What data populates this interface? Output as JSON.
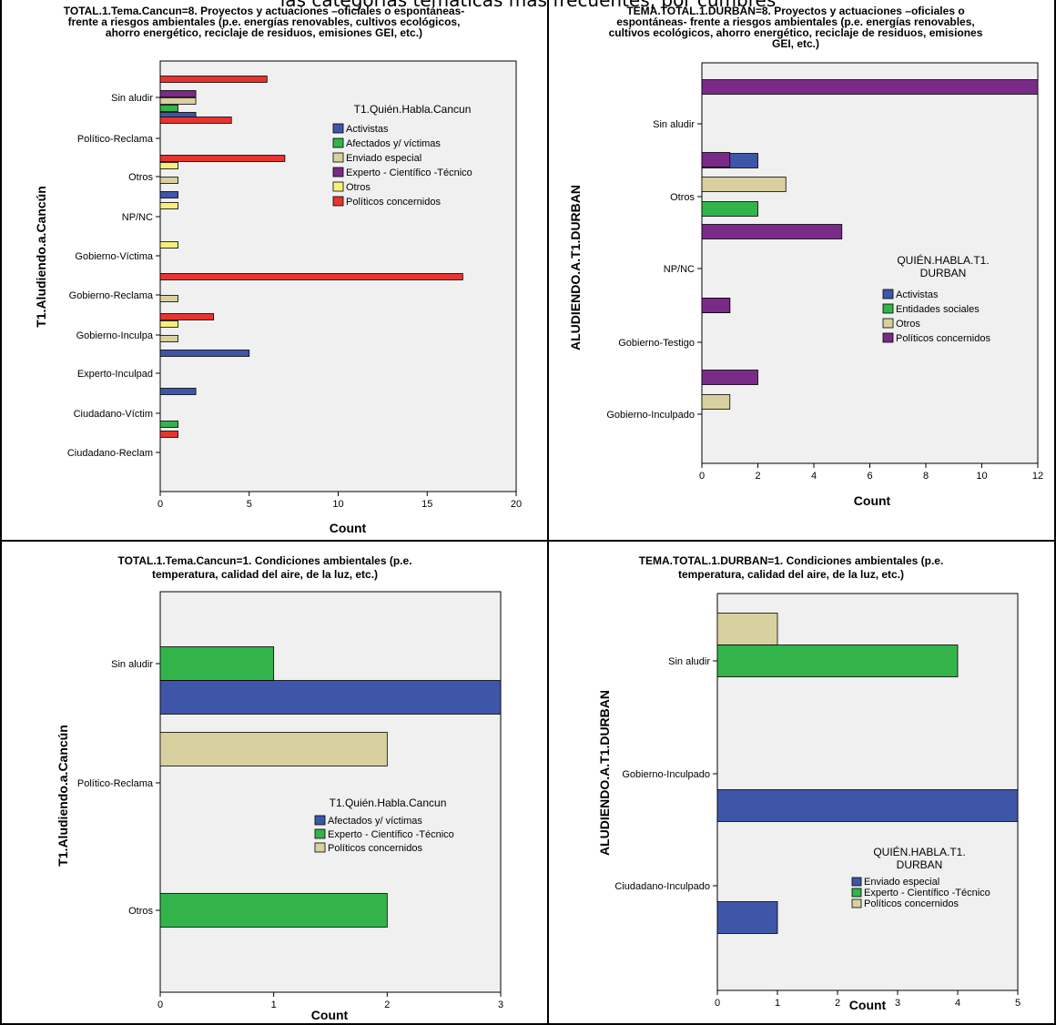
{
  "caption": "las categorías temáticas más frecuentes, por cumbres",
  "colors": {
    "blue": "#3f56a8",
    "green": "#33b44b",
    "tan": "#d9d09f",
    "purple": "#7a2b88",
    "yellow": "#f5f07a",
    "red": "#e8342f"
  },
  "chart_data": [
    {
      "type": "bar",
      "orientation": "horizontal",
      "title": [
        "TOTAL.1.Tema.Cancun=8. Proyectos y actuaciones –oficiales o espontáneas-",
        "frente a riesgos ambientales (p.e. energías renovables, cultivos ecológicos,",
        "ahorro energético, reciclaje de residuos, emisiones GEI, etc.)"
      ],
      "xlabel": "Count",
      "ylabel": "T1.Aludiendo.a.Cancún",
      "xlim": [
        0,
        20
      ],
      "xticks": [
        0,
        5,
        10,
        15,
        20
      ],
      "legend_title": [
        "T1.Quién.Habla.Cancun"
      ],
      "legend_position": "top-right",
      "categories": [
        "Sin aludir",
        "Político-Reclama",
        "Otros",
        "NP/NC",
        "Gobierno-Víctima",
        "Gobierno-Reclama",
        "Gobierno-Inculpa",
        "Experto-Inculpad",
        "Ciudadano-Víctim",
        "Ciudadano-Reclam"
      ],
      "series": [
        {
          "name": "Activistas",
          "color": "blue",
          "values": [
            2,
            0,
            1,
            0,
            0,
            0,
            5,
            2,
            0,
            0
          ]
        },
        {
          "name": "Afectados y/ víctimas",
          "color": "green",
          "values": [
            1,
            0,
            0,
            0,
            0,
            0,
            0,
            0,
            1,
            0
          ]
        },
        {
          "name": "Enviado especial",
          "color": "tan",
          "values": [
            2,
            0,
            1,
            0,
            0,
            1,
            1,
            0,
            0,
            0
          ]
        },
        {
          "name": "Experto - Científico -Técnico",
          "color": "purple",
          "values": [
            2,
            0,
            0,
            0,
            0,
            0,
            0,
            0,
            0,
            0
          ]
        },
        {
          "name": "Otros",
          "color": "yellow",
          "values": [
            0,
            0,
            1,
            1,
            1,
            0,
            1,
            0,
            0,
            0
          ]
        },
        {
          "name": "Políticos concernidos",
          "color": "red",
          "values": [
            6,
            4,
            7,
            0,
            0,
            17,
            3,
            0,
            0,
            1
          ]
        }
      ]
    },
    {
      "type": "bar",
      "orientation": "horizontal",
      "title": [
        "TEMA.TOTAL.1.DURBAN=8. Proyectos y actuaciones –oficiales o",
        "espontáneas- frente a riesgos ambientales (p.e. energías renovables,",
        "cultivos ecológicos, ahorro energético, reciclaje de residuos, emisiones",
        "GEI, etc.)"
      ],
      "xlabel": "Count",
      "ylabel": "ALUDIENDO.A.T1.DURBAN",
      "xlim": [
        0,
        12
      ],
      "xticks": [
        0,
        2,
        4,
        6,
        8,
        10,
        12
      ],
      "legend_title": [
        "QUIÉN.HABLA.T1.",
        "DURBAN"
      ],
      "legend_position": "right",
      "categories": [
        "Sin aludir",
        "Otros",
        "NP/NC",
        "Gobierno-Testigo",
        "Gobierno-Inculpado"
      ],
      "series": [
        {
          "name": "Activistas",
          "color": "blue",
          "values": [
            2,
            0,
            1,
            0,
            0
          ]
        },
        {
          "name": "Entidades sociales",
          "color": "green",
          "values": [
            0,
            2,
            0,
            0,
            0
          ]
        },
        {
          "name": "Otros",
          "color": "tan",
          "values": [
            0,
            3,
            0,
            0,
            1
          ]
        },
        {
          "name": "Políticos concernidos",
          "color": "purple",
          "values": [
            12,
            1,
            5,
            1,
            2
          ]
        }
      ]
    },
    {
      "type": "bar",
      "orientation": "horizontal",
      "title": [
        "TOTAL.1.Tema.Cancun=1. Condiciones ambientales (p.e.",
        "temperatura, calidad del aire, de la luz, etc.)"
      ],
      "xlabel": "Count",
      "ylabel": "T1.Aludiendo.a.Cancún",
      "xlim": [
        0,
        3
      ],
      "xticks": [
        0,
        1,
        2,
        3
      ],
      "legend_title": [
        "T1.Quién.Habla.Cancun"
      ],
      "legend_position": "right",
      "categories": [
        "Sin aludir",
        "Político-Reclama",
        "Otros"
      ],
      "series": [
        {
          "name": "Afectados y/ víctimas",
          "color": "blue",
          "values": [
            3,
            0,
            0
          ]
        },
        {
          "name": "Experto - Científico -Técnico",
          "color": "green",
          "values": [
            1,
            0,
            2
          ]
        },
        {
          "name": "Políticos concernidos",
          "color": "tan",
          "values": [
            0,
            2,
            0
          ]
        }
      ]
    },
    {
      "type": "bar",
      "orientation": "horizontal",
      "title": [
        "TEMA.TOTAL.1.DURBAN=1. Condiciones ambientales (p.e.",
        "temperatura, calidad del aire, de la luz, etc.)"
      ],
      "xlabel": "Count",
      "ylabel": "ALUDIENDO.A.T1.DURBAN",
      "xlim": [
        0,
        5
      ],
      "xticks": [
        0,
        1,
        2,
        3,
        4,
        5
      ],
      "legend_title": [
        "QUIÉN.HABLA.T1.",
        "DURBAN"
      ],
      "legend_position": "bottom-right",
      "categories": [
        "Sin aludir",
        "Gobierno-Inculpado",
        "Ciudadano-Inculpado"
      ],
      "series": [
        {
          "name": "Enviado especial",
          "color": "blue",
          "values": [
            0,
            5,
            1
          ]
        },
        {
          "name": "Experto - Científico -Técnico",
          "color": "green",
          "values": [
            4,
            0,
            0
          ]
        },
        {
          "name": "Políticos concernidos",
          "color": "tan",
          "values": [
            1,
            0,
            0
          ]
        }
      ]
    }
  ]
}
